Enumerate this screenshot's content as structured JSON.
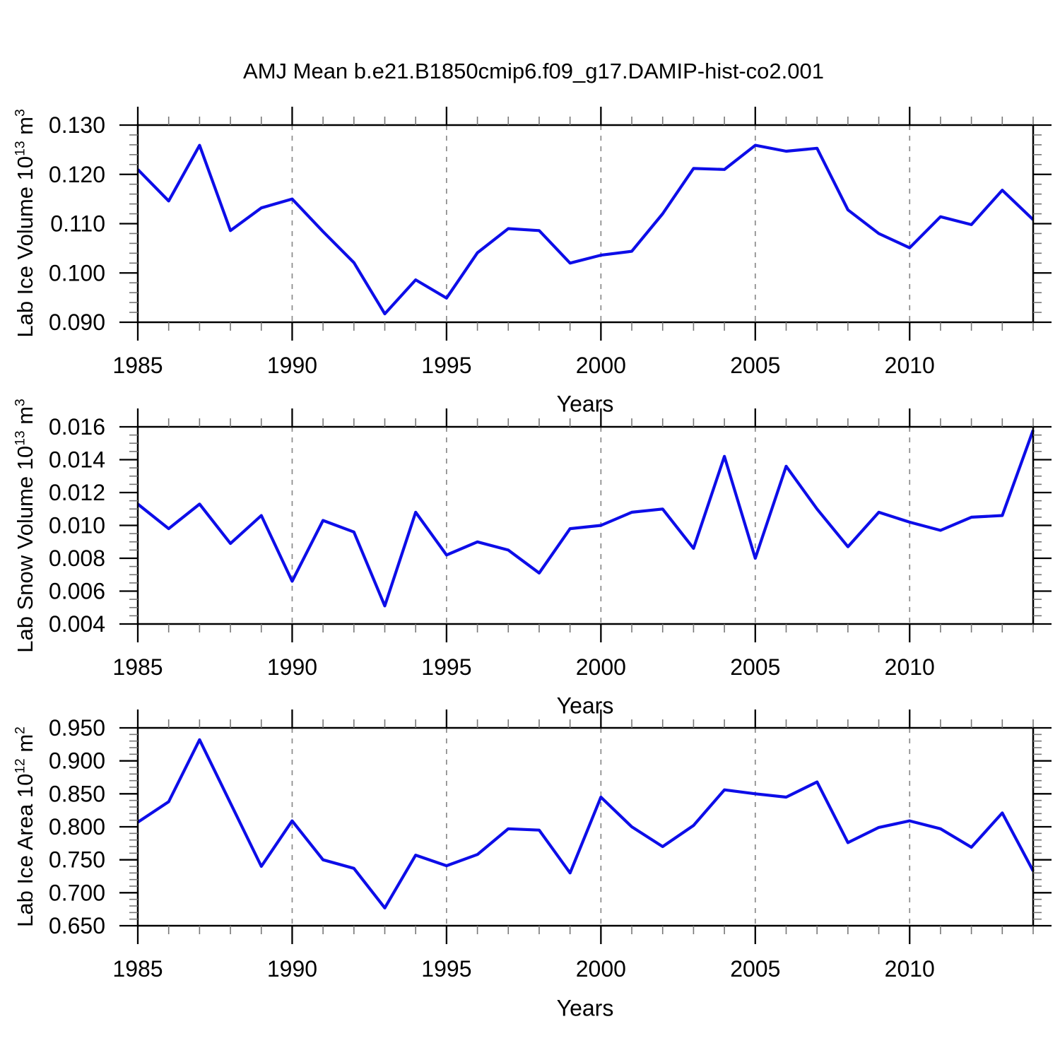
{
  "title": "AMJ Mean b.e21.B1850cmip6.f09_g17.DAMIP-hist-co2.001",
  "colors": {
    "line": "#0d0de8",
    "frame": "#000000",
    "minor_tick": "#777777",
    "grid": "#8a8a8a",
    "text": "#000000",
    "background": "#ffffff"
  },
  "chart_data": [
    {
      "type": "line",
      "name": "lab-ice-volume",
      "ylabel_parts": {
        "base": "Lab Ice Volume 10",
        "exp": "13",
        "unit": " m",
        "unit_exp": "3"
      },
      "xlabel": "Years",
      "x": [
        1985,
        1986,
        1987,
        1988,
        1989,
        1990,
        1991,
        1992,
        1993,
        1994,
        1995,
        1996,
        1997,
        1998,
        1999,
        2000,
        2001,
        2002,
        2003,
        2004,
        2005,
        2006,
        2007,
        2008,
        2009,
        2010,
        2011,
        2012,
        2013,
        2014
      ],
      "values": [
        0.121,
        0.1146,
        0.1259,
        0.1086,
        0.1132,
        0.115,
        0.1084,
        0.1021,
        0.0917,
        0.0986,
        0.0949,
        0.1041,
        0.109,
        0.1086,
        0.102,
        0.1036,
        0.1044,
        0.112,
        0.1212,
        0.121,
        0.1259,
        0.1247,
        0.1253,
        0.1128,
        0.108,
        0.1051,
        0.1114,
        0.1098,
        0.1168,
        0.1108
      ],
      "xlim": [
        1985,
        2014
      ],
      "ylim": [
        0.09,
        0.13
      ],
      "ytick_values": [
        0.09,
        0.1,
        0.11,
        0.12,
        0.13
      ],
      "ytick_labels": [
        "0.090",
        "0.100",
        "0.110",
        "0.120",
        "0.130"
      ],
      "y_minor_step": 0.002,
      "xtick_values": [
        1985,
        1990,
        1995,
        2000,
        2005,
        2010
      ],
      "xtick_labels": [
        "1985",
        "1990",
        "1995",
        "2000",
        "2005",
        "2010"
      ],
      "x_minor_step": 1,
      "grid_years": [
        1990,
        1995,
        2000,
        2005,
        2010
      ],
      "grid_on": "vertical-dashed",
      "legend": "none"
    },
    {
      "type": "line",
      "name": "lab-snow-volume",
      "ylabel_parts": {
        "base": "Lab Snow Volume 10",
        "exp": "13",
        "unit": " m",
        "unit_exp": "3"
      },
      "xlabel": "Years",
      "x": [
        1985,
        1986,
        1987,
        1988,
        1989,
        1990,
        1991,
        1992,
        1993,
        1994,
        1995,
        1996,
        1997,
        1998,
        1999,
        2000,
        2001,
        2002,
        2003,
        2004,
        2005,
        2006,
        2007,
        2008,
        2009,
        2010,
        2011,
        2012,
        2013,
        2014
      ],
      "values": [
        0.0113,
        0.0098,
        0.0113,
        0.0089,
        0.0106,
        0.0066,
        0.0103,
        0.0096,
        0.0051,
        0.0108,
        0.0082,
        0.009,
        0.0085,
        0.0071,
        0.0098,
        0.01,
        0.0108,
        0.011,
        0.0086,
        0.0142,
        0.008,
        0.0136,
        0.011,
        0.0087,
        0.0108,
        0.0102,
        0.0097,
        0.0105,
        0.0106,
        0.0158
      ],
      "xlim": [
        1985,
        2014
      ],
      "ylim": [
        0.004,
        0.016
      ],
      "ytick_values": [
        0.004,
        0.006,
        0.008,
        0.01,
        0.012,
        0.014,
        0.016
      ],
      "ytick_labels": [
        "0.004",
        "0.006",
        "0.008",
        "0.010",
        "0.012",
        "0.014",
        "0.016"
      ],
      "y_minor_step": 0.0005,
      "xtick_values": [
        1985,
        1990,
        1995,
        2000,
        2005,
        2010
      ],
      "xtick_labels": [
        "1985",
        "1990",
        "1995",
        "2000",
        "2005",
        "2010"
      ],
      "x_minor_step": 1,
      "grid_years": [
        1990,
        1995,
        2000,
        2005,
        2010
      ],
      "grid_on": "vertical-dashed",
      "legend": "none"
    },
    {
      "type": "line",
      "name": "lab-ice-area",
      "ylabel_parts": {
        "base": "Lab Ice Area 10",
        "exp": "12",
        "unit": " m",
        "unit_exp": "2"
      },
      "xlabel": "Years",
      "x": [
        1985,
        1986,
        1987,
        1988,
        1989,
        1990,
        1991,
        1992,
        1993,
        1994,
        1995,
        1996,
        1997,
        1998,
        1999,
        2000,
        2001,
        2002,
        2003,
        2004,
        2005,
        2006,
        2007,
        2008,
        2009,
        2010,
        2011,
        2012,
        2013,
        2014
      ],
      "values": [
        0.807,
        0.838,
        0.932,
        0.836,
        0.74,
        0.809,
        0.75,
        0.737,
        0.677,
        0.757,
        0.741,
        0.758,
        0.797,
        0.795,
        0.73,
        0.845,
        0.8,
        0.77,
        0.802,
        0.856,
        0.85,
        0.845,
        0.868,
        0.776,
        0.799,
        0.809,
        0.797,
        0.769,
        0.821,
        0.733
      ],
      "xlim": [
        1985,
        2014
      ],
      "ylim": [
        0.65,
        0.95
      ],
      "ytick_values": [
        0.65,
        0.7,
        0.75,
        0.8,
        0.85,
        0.9,
        0.95
      ],
      "ytick_labels": [
        "0.650",
        "0.700",
        "0.750",
        "0.800",
        "0.850",
        "0.900",
        "0.950"
      ],
      "y_minor_step": 0.01,
      "xtick_values": [
        1985,
        1990,
        1995,
        2000,
        2005,
        2010
      ],
      "xtick_labels": [
        "1985",
        "1990",
        "1995",
        "2000",
        "2005",
        "2010"
      ],
      "x_minor_step": 1,
      "grid_years": [
        1990,
        1995,
        2000,
        2005,
        2010
      ],
      "grid_on": "vertical-dashed",
      "legend": "none"
    }
  ]
}
